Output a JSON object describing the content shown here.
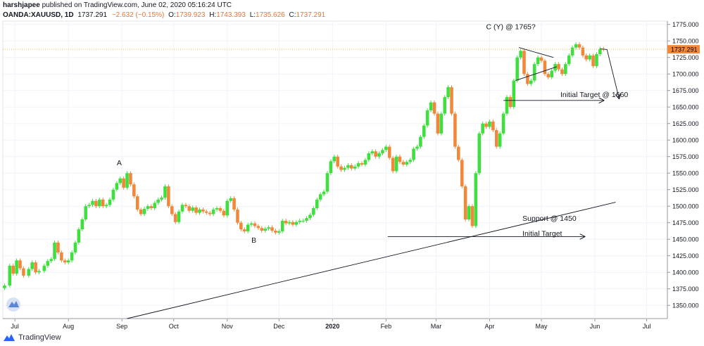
{
  "header": {
    "author": "harshjapee",
    "published_text": "published on TradingView.com, June 02, 2020 05:16:24 UTC",
    "symbol": "OANDA:XAUUSD, 1D",
    "last": "1737.291",
    "change": "−2.632 (−0.15%)",
    "open_label": "O:",
    "open": "1739.923",
    "high_label": "H:",
    "high": "1743.393",
    "low_label": "L:",
    "low": "1735.626",
    "close_label": "C:",
    "close": "1737.291"
  },
  "footer": {
    "brand": "TradingView"
  },
  "colors": {
    "up": "#3ee03e",
    "down": "#f2873a",
    "price_line": "#f0b33c",
    "line": "#131722"
  },
  "chart_data": {
    "type": "candlestick",
    "ylim": [
      1330,
      1780
    ],
    "y_ticks": [
      1350,
      1375,
      1400,
      1425,
      1450,
      1475,
      1500,
      1525,
      1550,
      1575,
      1600,
      1625,
      1650,
      1675,
      1700,
      1725,
      1750,
      1775
    ],
    "x_labels": [
      {
        "label": "Jul",
        "day": 7
      },
      {
        "label": "Aug",
        "day": 38
      },
      {
        "label": "Sep",
        "day": 69
      },
      {
        "label": "Oct",
        "day": 99
      },
      {
        "label": "Nov",
        "day": 130
      },
      {
        "label": "Dec",
        "day": 160
      },
      {
        "label": "2020",
        "day": 191
      },
      {
        "label": "Feb",
        "day": 222
      },
      {
        "label": "Mar",
        "day": 251
      },
      {
        "label": "Apr",
        "day": 282
      },
      {
        "label": "May",
        "day": 312
      },
      {
        "label": "Jun",
        "day": 343
      },
      {
        "label": "Jul",
        "day": 373
      }
    ],
    "x_range": [
      0,
      385
    ],
    "last_price": 1737.291,
    "last_price_label": "1737.291",
    "closes": [
      [
        1,
        1380
      ],
      [
        4,
        1410
      ],
      [
        6,
        1398
      ],
      [
        8,
        1418
      ],
      [
        10,
        1406
      ],
      [
        12,
        1395
      ],
      [
        15,
        1405
      ],
      [
        17,
        1415
      ],
      [
        19,
        1400
      ],
      [
        21,
        1402
      ],
      [
        24,
        1410
      ],
      [
        26,
        1417
      ],
      [
        28,
        1420
      ],
      [
        30,
        1445
      ],
      [
        32,
        1430
      ],
      [
        34,
        1418
      ],
      [
        36,
        1415
      ],
      [
        38,
        1418
      ],
      [
        40,
        1430
      ],
      [
        42,
        1445
      ],
      [
        44,
        1465
      ],
      [
        46,
        1480
      ],
      [
        48,
        1500
      ],
      [
        50,
        1502
      ],
      [
        52,
        1508
      ],
      [
        54,
        1500
      ],
      [
        56,
        1510
      ],
      [
        58,
        1500
      ],
      [
        60,
        1502
      ],
      [
        62,
        1510
      ],
      [
        64,
        1525
      ],
      [
        66,
        1535
      ],
      [
        68,
        1542
      ],
      [
        70,
        1528
      ],
      [
        72,
        1550
      ],
      [
        74,
        1533
      ],
      [
        76,
        1515
      ],
      [
        78,
        1495
      ],
      [
        80,
        1488
      ],
      [
        82,
        1496
      ],
      [
        84,
        1500
      ],
      [
        86,
        1497
      ],
      [
        88,
        1505
      ],
      [
        90,
        1510
      ],
      [
        92,
        1513
      ],
      [
        94,
        1530
      ],
      [
        96,
        1500
      ],
      [
        98,
        1488
      ],
      [
        100,
        1476
      ],
      [
        102,
        1492
      ],
      [
        104,
        1502
      ],
      [
        106,
        1500
      ],
      [
        108,
        1493
      ],
      [
        110,
        1498
      ],
      [
        112,
        1490
      ],
      [
        114,
        1495
      ],
      [
        116,
        1492
      ],
      [
        118,
        1490
      ],
      [
        120,
        1488
      ],
      [
        122,
        1495
      ],
      [
        124,
        1497
      ],
      [
        126,
        1493
      ],
      [
        128,
        1486
      ],
      [
        130,
        1508
      ],
      [
        132,
        1512
      ],
      [
        134,
        1495
      ],
      [
        136,
        1475
      ],
      [
        138,
        1465
      ],
      [
        140,
        1462
      ],
      [
        142,
        1472
      ],
      [
        144,
        1474
      ],
      [
        146,
        1470
      ],
      [
        148,
        1467
      ],
      [
        150,
        1463
      ],
      [
        152,
        1466
      ],
      [
        154,
        1468
      ],
      [
        156,
        1463
      ],
      [
        158,
        1460
      ],
      [
        160,
        1462
      ],
      [
        162,
        1478
      ],
      [
        164,
        1474
      ],
      [
        166,
        1476
      ],
      [
        168,
        1472
      ],
      [
        170,
        1476
      ],
      [
        172,
        1478
      ],
      [
        174,
        1478
      ],
      [
        176,
        1482
      ],
      [
        178,
        1487
      ],
      [
        180,
        1497
      ],
      [
        182,
        1510
      ],
      [
        184,
        1518
      ],
      [
        186,
        1522
      ],
      [
        188,
        1550
      ],
      [
        190,
        1568
      ],
      [
        192,
        1575
      ],
      [
        194,
        1560
      ],
      [
        196,
        1555
      ],
      [
        198,
        1558
      ],
      [
        200,
        1562
      ],
      [
        202,
        1557
      ],
      [
        204,
        1560
      ],
      [
        206,
        1565
      ],
      [
        208,
        1563
      ],
      [
        210,
        1570
      ],
      [
        212,
        1580
      ],
      [
        214,
        1583
      ],
      [
        216,
        1575
      ],
      [
        218,
        1580
      ],
      [
        220,
        1585
      ],
      [
        222,
        1590
      ],
      [
        224,
        1573
      ],
      [
        226,
        1553
      ],
      [
        228,
        1575
      ],
      [
        230,
        1567
      ],
      [
        232,
        1563
      ],
      [
        234,
        1567
      ],
      [
        236,
        1570
      ],
      [
        238,
        1587
      ],
      [
        240,
        1590
      ],
      [
        242,
        1605
      ],
      [
        244,
        1622
      ],
      [
        246,
        1645
      ],
      [
        248,
        1657
      ],
      [
        250,
        1640
      ],
      [
        252,
        1610
      ],
      [
        254,
        1640
      ],
      [
        256,
        1665
      ],
      [
        258,
        1680
      ],
      [
        260,
        1640
      ],
      [
        262,
        1590
      ],
      [
        264,
        1570
      ],
      [
        266,
        1530
      ],
      [
        268,
        1480
      ],
      [
        270,
        1500
      ],
      [
        272,
        1470
      ],
      [
        274,
        1550
      ],
      [
        276,
        1610
      ],
      [
        278,
        1625
      ],
      [
        280,
        1620
      ],
      [
        282,
        1628
      ],
      [
        284,
        1615
      ],
      [
        286,
        1590
      ],
      [
        288,
        1610
      ],
      [
        290,
        1640
      ],
      [
        292,
        1665
      ],
      [
        294,
        1650
      ],
      [
        296,
        1690
      ],
      [
        298,
        1725
      ],
      [
        300,
        1735
      ],
      [
        302,
        1700
      ],
      [
        304,
        1685
      ],
      [
        306,
        1690
      ],
      [
        308,
        1715
      ],
      [
        310,
        1725
      ],
      [
        312,
        1720
      ],
      [
        314,
        1700
      ],
      [
        316,
        1695
      ],
      [
        318,
        1705
      ],
      [
        320,
        1715
      ],
      [
        322,
        1707
      ],
      [
        324,
        1700
      ],
      [
        326,
        1715
      ],
      [
        328,
        1728
      ],
      [
        330,
        1740
      ],
      [
        332,
        1745
      ],
      [
        334,
        1740
      ],
      [
        336,
        1728
      ],
      [
        338,
        1722
      ],
      [
        340,
        1728
      ],
      [
        342,
        1712
      ],
      [
        344,
        1730
      ],
      [
        346,
        1738
      ],
      [
        348,
        1737.291
      ]
    ],
    "annotations": [
      {
        "id": "A",
        "text": "A",
        "day": 66,
        "price": 1562
      },
      {
        "id": "B",
        "text": "B",
        "day": 144,
        "price": 1445
      },
      {
        "id": "C",
        "text": "C (Y) @ 1765?",
        "day": 280,
        "price": 1768
      },
      {
        "id": "initial-target-1660",
        "text": "Initial Target @ 1660",
        "day": 323,
        "price": 1665
      },
      {
        "id": "support-1450",
        "text": "Support @ 1450",
        "day": 301,
        "price": 1478
      },
      {
        "id": "initial-target",
        "text": "Initial Target",
        "day": 301,
        "price": 1455
      }
    ],
    "lines": [
      {
        "id": "support-trendline",
        "from": [
          72,
          1330
        ],
        "to": [
          355,
          1506
        ],
        "arrow": false
      },
      {
        "id": "horizontal-arrow-1450",
        "from": [
          223,
          1454
        ],
        "to": [
          337,
          1454
        ],
        "arrow": true
      },
      {
        "id": "triangle-upper",
        "from": [
          299,
          1740
        ],
        "to": [
          319,
          1725
        ],
        "arrow": false
      },
      {
        "id": "triangle-lower",
        "from": [
          297,
          1690
        ],
        "to": [
          321,
          1711
        ],
        "arrow": false
      },
      {
        "id": "horizontal-arrow-1660",
        "from": [
          290,
          1660
        ],
        "to": [
          348,
          1660
        ],
        "arrow": true
      },
      {
        "id": "projection-segment",
        "from": [
          346,
          1738
        ],
        "to": [
          350,
          1737
        ],
        "arrow": false
      },
      {
        "id": "projection-arrow",
        "from": [
          350,
          1737
        ],
        "to": [
          357,
          1663
        ],
        "arrow": true
      }
    ]
  }
}
